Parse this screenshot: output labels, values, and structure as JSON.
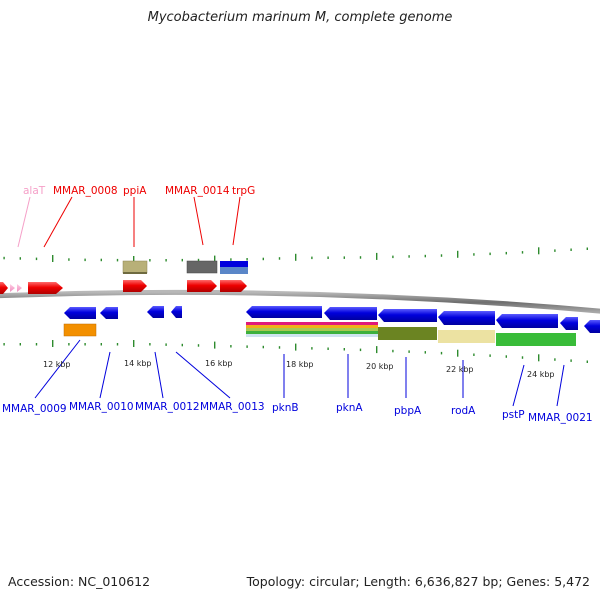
{
  "title": "Mycobacterium marinum M, complete genome",
  "footer": {
    "accession": "Accession: NC_010612",
    "summary": "Topology: circular; Length: 6,636,827 bp; Genes: 5,472"
  },
  "colors": {
    "forward": "#ee0000",
    "reverse": "#0000dd",
    "trna": "#f5a0c8",
    "backbone": "#888888",
    "ticks": "#2e8b2e"
  },
  "upper_labels": [
    {
      "text": "alaT",
      "color": "#f5a0c8"
    },
    {
      "text": "MMAR_0008",
      "color": "#ee0000"
    },
    {
      "text": "ppiA",
      "color": "#ee0000"
    },
    {
      "text": "MMAR_0014",
      "color": "#ee0000"
    },
    {
      "text": "trpG",
      "color": "#ee0000"
    }
  ],
  "lower_labels": [
    {
      "text": "MMAR_0009"
    },
    {
      "text": "MMAR_0010"
    },
    {
      "text": "MMAR_0012"
    },
    {
      "text": "MMAR_0013"
    },
    {
      "text": "pknB"
    },
    {
      "text": "pknA"
    },
    {
      "text": "pbpA"
    },
    {
      "text": "rodA"
    },
    {
      "text": "pstP"
    },
    {
      "text": "MMAR_0021"
    }
  ],
  "scale_labels": [
    "12 kbp",
    "14 kbp",
    "16 kbp",
    "18 kbp",
    "20 kbp",
    "22 kbp",
    "24 kbp"
  ]
}
